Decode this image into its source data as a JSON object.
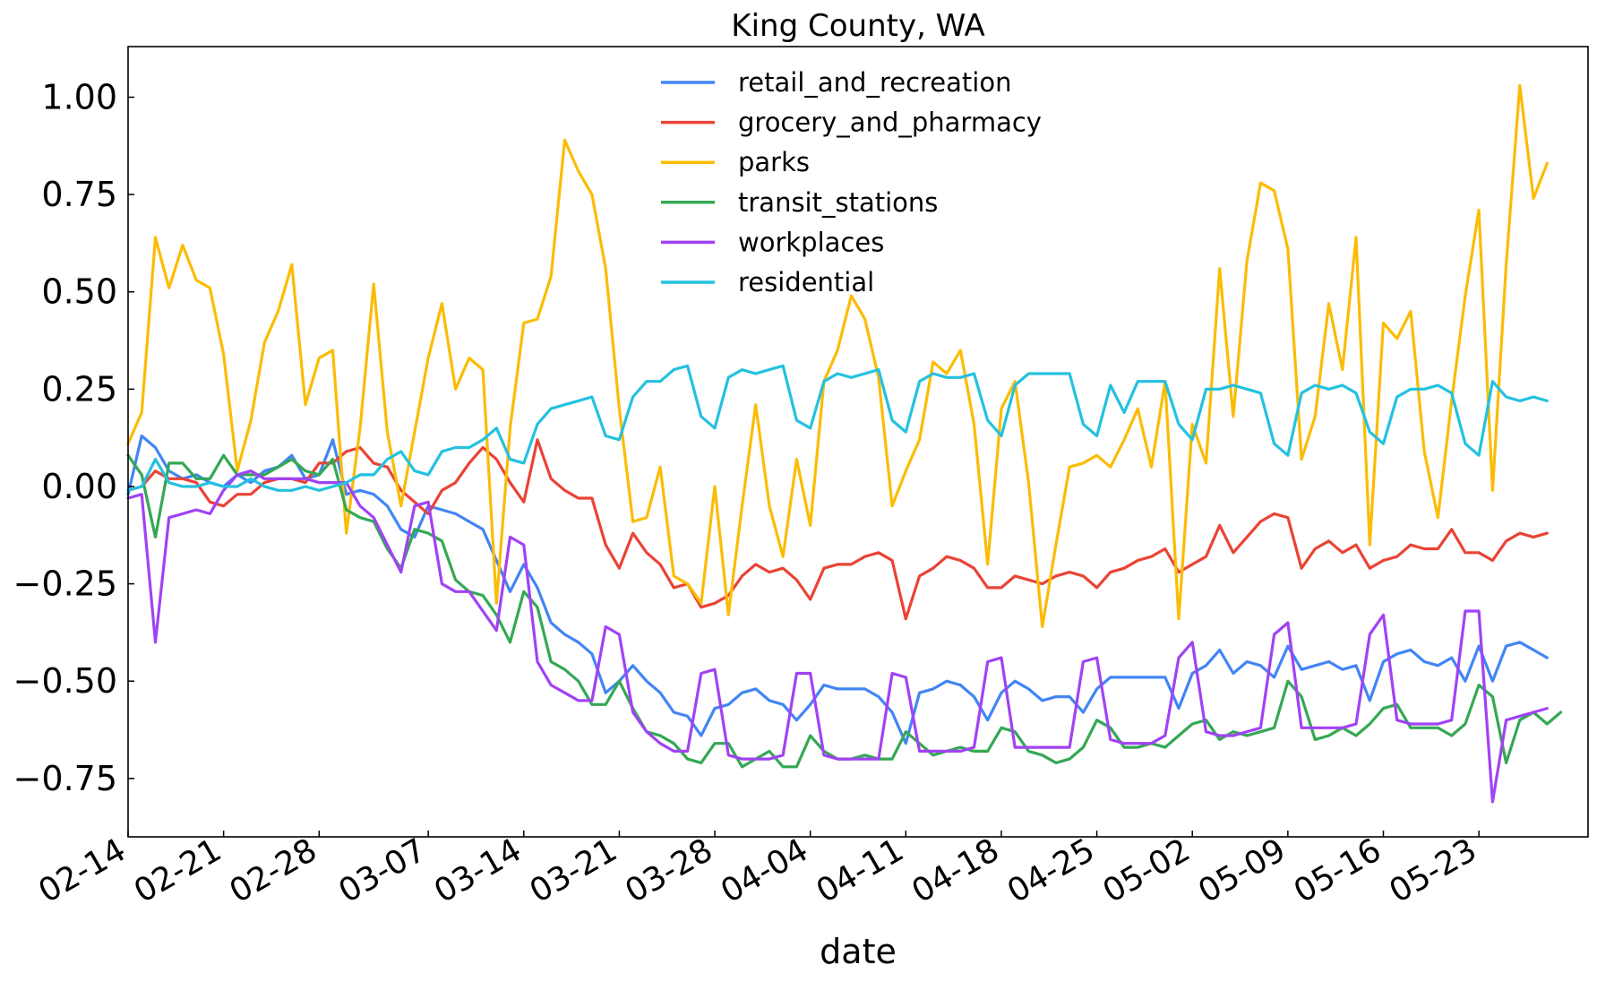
{
  "chart_data": {
    "type": "line",
    "title": "King County, WA",
    "xlabel": "date",
    "ylabel": "",
    "grid": false,
    "legend_position": "top-center",
    "xlim": [
      "02-14",
      "05-31"
    ],
    "ylim": [
      -0.9,
      1.13
    ],
    "x_ticks": [
      "02-14",
      "02-21",
      "02-28",
      "03-07",
      "03-14",
      "03-21",
      "03-28",
      "04-04",
      "04-11",
      "04-18",
      "04-25",
      "05-02",
      "05-09",
      "05-16",
      "05-23"
    ],
    "y_ticks": [
      {
        "value": 1.0,
        "label": "1.00"
      },
      {
        "value": 0.75,
        "label": "0.75"
      },
      {
        "value": 0.5,
        "label": "0.50"
      },
      {
        "value": 0.25,
        "label": "0.25"
      },
      {
        "value": 0.0,
        "label": "0.00"
      },
      {
        "value": -0.25,
        "label": "−0.25"
      },
      {
        "value": -0.5,
        "label": "−0.50"
      },
      {
        "value": -0.75,
        "label": "−0.75"
      }
    ],
    "x_start": "02-14",
    "series": [
      {
        "name": "retail_and_recreation",
        "color": "#4285f4",
        "values": [
          -0.02,
          0.13,
          0.1,
          0.04,
          0.02,
          0.03,
          0.01,
          0.0,
          0.03,
          0.01,
          0.04,
          0.05,
          0.08,
          0.02,
          0.03,
          0.12,
          -0.02,
          -0.01,
          -0.02,
          -0.05,
          -0.11,
          -0.13,
          -0.05,
          -0.06,
          -0.07,
          -0.09,
          -0.11,
          -0.19,
          -0.27,
          -0.2,
          -0.26,
          -0.35,
          -0.38,
          -0.4,
          -0.43,
          -0.53,
          -0.5,
          -0.46,
          -0.5,
          -0.53,
          -0.58,
          -0.59,
          -0.64,
          -0.57,
          -0.56,
          -0.53,
          -0.52,
          -0.55,
          -0.56,
          -0.6,
          -0.56,
          -0.51,
          -0.52,
          -0.52,
          -0.52,
          -0.54,
          -0.58,
          -0.66,
          -0.53,
          -0.52,
          -0.5,
          -0.51,
          -0.54,
          -0.6,
          -0.53,
          -0.5,
          -0.52,
          -0.55,
          -0.54,
          -0.54,
          -0.58,
          -0.52,
          -0.49,
          -0.49,
          -0.49,
          -0.49,
          -0.49,
          -0.57,
          -0.48,
          -0.46,
          -0.42,
          -0.48,
          -0.45,
          -0.46,
          -0.49,
          -0.41,
          -0.47,
          -0.46,
          -0.45,
          -0.47,
          -0.46,
          -0.55,
          -0.45,
          -0.43,
          -0.42,
          -0.45,
          -0.46,
          -0.44,
          -0.5,
          -0.41,
          -0.5,
          -0.41,
          -0.4,
          -0.42,
          -0.44
        ]
      },
      {
        "name": "grocery_and_pharmacy",
        "color": "#ea4335",
        "values": [
          -0.01,
          0.0,
          0.04,
          0.02,
          0.02,
          0.01,
          -0.04,
          -0.05,
          -0.02,
          -0.02,
          0.01,
          0.02,
          0.02,
          0.01,
          0.06,
          0.06,
          0.09,
          0.1,
          0.06,
          0.05,
          -0.01,
          -0.04,
          -0.07,
          -0.01,
          0.01,
          0.06,
          0.1,
          0.07,
          0.01,
          -0.04,
          0.12,
          0.02,
          -0.01,
          -0.03,
          -0.03,
          -0.15,
          -0.21,
          -0.12,
          -0.17,
          -0.2,
          -0.26,
          -0.25,
          -0.31,
          -0.3,
          -0.28,
          -0.23,
          -0.2,
          -0.22,
          -0.21,
          -0.24,
          -0.29,
          -0.21,
          -0.2,
          -0.2,
          -0.18,
          -0.17,
          -0.19,
          -0.34,
          -0.23,
          -0.21,
          -0.18,
          -0.19,
          -0.21,
          -0.26,
          -0.26,
          -0.23,
          -0.24,
          -0.25,
          -0.23,
          -0.22,
          -0.23,
          -0.26,
          -0.22,
          -0.21,
          -0.19,
          -0.18,
          -0.16,
          -0.22,
          -0.2,
          -0.18,
          -0.1,
          -0.17,
          -0.13,
          -0.09,
          -0.07,
          -0.08,
          -0.21,
          -0.16,
          -0.14,
          -0.17,
          -0.15,
          -0.21,
          -0.19,
          -0.18,
          -0.15,
          -0.16,
          -0.16,
          -0.11,
          -0.17,
          -0.17,
          -0.19,
          -0.14,
          -0.12,
          -0.13,
          -0.12
        ]
      },
      {
        "name": "parks",
        "color": "#fbbc04",
        "values": [
          0.11,
          0.19,
          0.64,
          0.51,
          0.62,
          0.53,
          0.51,
          0.34,
          0.04,
          0.17,
          0.37,
          0.45,
          0.57,
          0.21,
          0.33,
          0.35,
          -0.12,
          0.15,
          0.52,
          0.14,
          -0.05,
          0.14,
          0.33,
          0.47,
          0.25,
          0.33,
          0.3,
          -0.3,
          0.15,
          0.42,
          0.43,
          0.54,
          0.89,
          0.81,
          0.75,
          0.56,
          0.2,
          -0.09,
          -0.08,
          0.05,
          -0.23,
          -0.25,
          -0.3,
          0.0,
          -0.33,
          -0.05,
          0.21,
          -0.05,
          -0.18,
          0.07,
          -0.1,
          0.27,
          0.35,
          0.49,
          0.43,
          0.28,
          -0.05,
          0.04,
          0.12,
          0.32,
          0.29,
          0.35,
          0.16,
          -0.2,
          0.2,
          0.27,
          0.01,
          -0.36,
          -0.15,
          0.05,
          0.06,
          0.08,
          0.05,
          0.12,
          0.2,
          0.05,
          0.27,
          -0.34,
          0.16,
          0.06,
          0.56,
          0.18,
          0.58,
          0.78,
          0.76,
          0.61,
          0.07,
          0.18,
          0.47,
          0.3,
          0.64,
          -0.15,
          0.42,
          0.38,
          0.45,
          0.09,
          -0.08,
          0.22,
          0.49,
          0.71,
          -0.01,
          0.57,
          1.03,
          0.74,
          0.83
        ]
      },
      {
        "name": "transit_stations",
        "color": "#34a853",
        "values": [
          0.08,
          0.03,
          -0.13,
          0.06,
          0.06,
          0.02,
          0.02,
          0.08,
          0.03,
          0.03,
          0.03,
          0.05,
          0.07,
          0.04,
          0.03,
          0.07,
          -0.06,
          -0.08,
          -0.09,
          -0.16,
          -0.21,
          -0.11,
          -0.12,
          -0.14,
          -0.24,
          -0.27,
          -0.28,
          -0.33,
          -0.4,
          -0.27,
          -0.31,
          -0.45,
          -0.47,
          -0.5,
          -0.56,
          -0.56,
          -0.5,
          -0.57,
          -0.63,
          -0.64,
          -0.66,
          -0.7,
          -0.71,
          -0.66,
          -0.66,
          -0.72,
          -0.7,
          -0.68,
          -0.72,
          -0.72,
          -0.64,
          -0.68,
          -0.7,
          -0.7,
          -0.69,
          -0.7,
          -0.7,
          -0.63,
          -0.66,
          -0.69,
          -0.68,
          -0.67,
          -0.68,
          -0.68,
          -0.62,
          -0.63,
          -0.68,
          -0.69,
          -0.71,
          -0.7,
          -0.67,
          -0.6,
          -0.62,
          -0.67,
          -0.67,
          -0.66,
          -0.67,
          -0.64,
          -0.61,
          -0.6,
          -0.65,
          -0.63,
          -0.64,
          -0.63,
          -0.62,
          -0.5,
          -0.54,
          -0.65,
          -0.64,
          -0.62,
          -0.64,
          -0.61,
          -0.57,
          -0.56,
          -0.62,
          -0.62,
          -0.62,
          -0.64,
          -0.61,
          -0.51,
          -0.54,
          -0.71,
          -0.6,
          -0.58,
          -0.61,
          -0.58
        ]
      },
      {
        "name": "workplaces",
        "color": "#a142f4",
        "values": [
          -0.03,
          -0.02,
          -0.4,
          -0.08,
          -0.07,
          -0.06,
          -0.07,
          -0.01,
          0.03,
          0.04,
          0.02,
          0.02,
          0.02,
          0.02,
          0.01,
          0.01,
          0.01,
          -0.05,
          -0.08,
          -0.15,
          -0.22,
          -0.05,
          -0.04,
          -0.25,
          -0.27,
          -0.27,
          -0.32,
          -0.37,
          -0.13,
          -0.15,
          -0.45,
          -0.51,
          -0.53,
          -0.55,
          -0.55,
          -0.36,
          -0.38,
          -0.58,
          -0.63,
          -0.66,
          -0.68,
          -0.68,
          -0.48,
          -0.47,
          -0.69,
          -0.7,
          -0.7,
          -0.7,
          -0.69,
          -0.48,
          -0.48,
          -0.69,
          -0.7,
          -0.7,
          -0.7,
          -0.7,
          -0.48,
          -0.49,
          -0.68,
          -0.68,
          -0.68,
          -0.68,
          -0.67,
          -0.45,
          -0.44,
          -0.67,
          -0.67,
          -0.67,
          -0.67,
          -0.67,
          -0.45,
          -0.44,
          -0.65,
          -0.66,
          -0.66,
          -0.66,
          -0.64,
          -0.44,
          -0.4,
          -0.63,
          -0.64,
          -0.64,
          -0.63,
          -0.62,
          -0.38,
          -0.35,
          -0.62,
          -0.62,
          -0.62,
          -0.62,
          -0.61,
          -0.38,
          -0.33,
          -0.6,
          -0.61,
          -0.61,
          -0.61,
          -0.6,
          -0.32,
          -0.32,
          -0.81,
          -0.6,
          -0.59,
          -0.58,
          -0.57
        ]
      },
      {
        "name": "residential",
        "color": "#24c1e0",
        "values": [
          -0.01,
          0.0,
          0.07,
          0.01,
          0.0,
          0.0,
          0.01,
          0.0,
          0.0,
          0.02,
          0.0,
          -0.01,
          -0.01,
          0.0,
          -0.01,
          0.0,
          0.01,
          0.03,
          0.03,
          0.07,
          0.09,
          0.04,
          0.03,
          0.09,
          0.1,
          0.1,
          0.12,
          0.15,
          0.07,
          0.06,
          0.16,
          0.2,
          0.21,
          0.22,
          0.23,
          0.13,
          0.12,
          0.23,
          0.27,
          0.27,
          0.3,
          0.31,
          0.18,
          0.15,
          0.28,
          0.3,
          0.29,
          0.3,
          0.31,
          0.17,
          0.15,
          0.27,
          0.29,
          0.28,
          0.29,
          0.3,
          0.17,
          0.14,
          0.27,
          0.29,
          0.28,
          0.28,
          0.29,
          0.17,
          0.13,
          0.26,
          0.29,
          0.29,
          0.29,
          0.29,
          0.16,
          0.13,
          0.26,
          0.19,
          0.27,
          0.27,
          0.27,
          0.16,
          0.12,
          0.25,
          0.25,
          0.26,
          0.25,
          0.24,
          0.11,
          0.08,
          0.24,
          0.26,
          0.25,
          0.26,
          0.24,
          0.14,
          0.11,
          0.23,
          0.25,
          0.25,
          0.26,
          0.24,
          0.11,
          0.08,
          0.27,
          0.23,
          0.22,
          0.23,
          0.22
        ]
      }
    ]
  }
}
